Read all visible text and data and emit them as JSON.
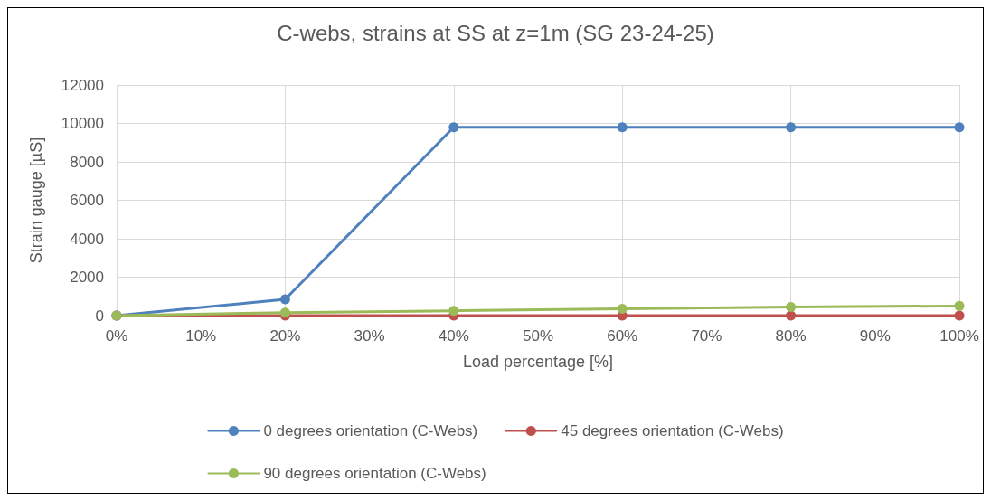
{
  "chart_data": {
    "type": "line",
    "title": "C-webs, strains at SS at z=1m (SG 23-24-25)",
    "xlabel": "Load percentage [%]",
    "ylabel": "Strain gauge [µS]",
    "x": [
      0,
      20,
      40,
      60,
      80,
      100
    ],
    "series": [
      {
        "name": "0 degrees orientation (C-Webs)",
        "color": "#4f81bd",
        "values": [
          0,
          850,
          9800,
          9800,
          9800,
          9800
        ]
      },
      {
        "name": "45 degrees orientation (C-Webs)",
        "color": "#c0504d",
        "values": [
          0,
          0,
          0,
          0,
          0,
          0
        ]
      },
      {
        "name": "90 degrees orientation (C-Webs)",
        "color": "#9bbb59",
        "values": [
          0,
          150,
          250,
          350,
          450,
          500
        ]
      }
    ],
    "xlim": [
      0,
      100
    ],
    "xticks": [
      {
        "value": 0,
        "label": "0%"
      },
      {
        "value": 10,
        "label": "10%"
      },
      {
        "value": 20,
        "label": "20%"
      },
      {
        "value": 30,
        "label": "30%"
      },
      {
        "value": 40,
        "label": "40%"
      },
      {
        "value": 50,
        "label": "50%"
      },
      {
        "value": 60,
        "label": "60%"
      },
      {
        "value": 70,
        "label": "70%"
      },
      {
        "value": 80,
        "label": "80%"
      },
      {
        "value": 90,
        "label": "90%"
      },
      {
        "value": 100,
        "label": "100%"
      }
    ],
    "ylim": [
      0,
      12000
    ],
    "yticks": [
      0,
      2000,
      4000,
      6000,
      8000,
      10000,
      12000
    ],
    "grid": true,
    "legend": "bottom",
    "marker": "circle",
    "line_style": "solid"
  }
}
